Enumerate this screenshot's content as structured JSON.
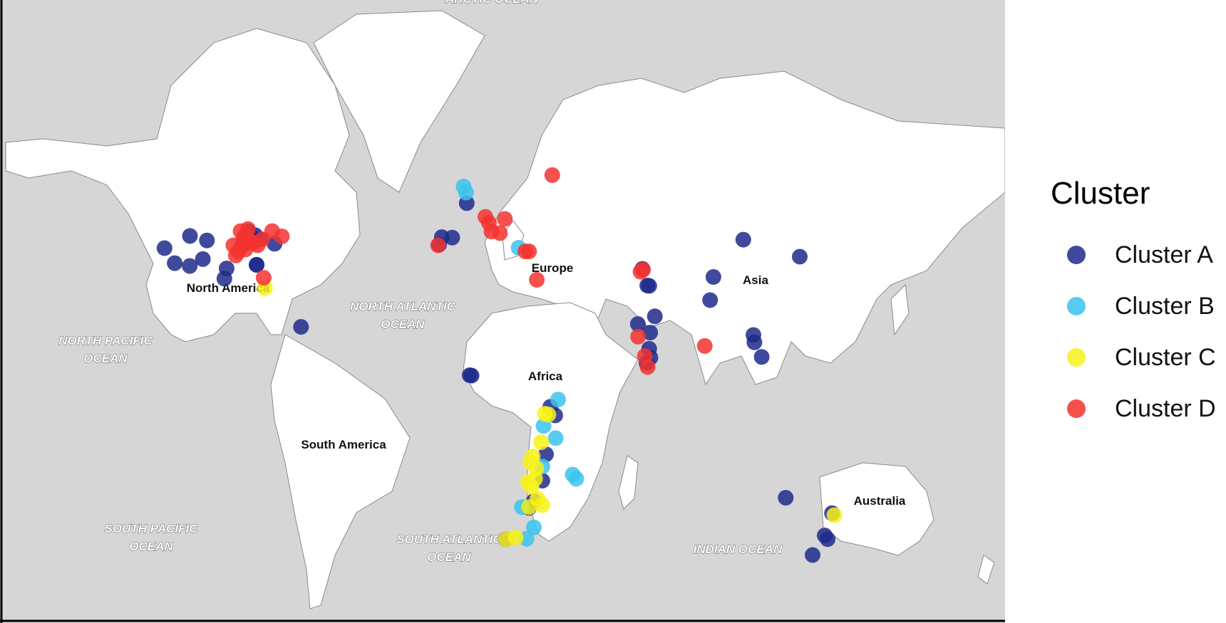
{
  "map": {
    "continent_labels": [
      "North America",
      "Europe",
      "Asia",
      "Africa",
      "South America",
      "Australia"
    ],
    "ocean_labels": {
      "north_pacific": [
        "NORTH PACIFIC",
        "OCEAN"
      ],
      "north_atlantic": [
        "NORTH ATLANTIC",
        "OCEAN"
      ],
      "south_pacific": [
        "SOUTH PACIFIC",
        "OCEAN"
      ],
      "south_atlantic": [
        "SOUTH ATLANTIC",
        "OCEAN"
      ],
      "indian": [
        "INDIAN OCEAN"
      ],
      "arctic": [
        "ARCTIC OCEAN"
      ]
    },
    "colors": {
      "ocean": "#d6d6d6",
      "land": "#ffffff",
      "border": "#8a8a8a"
    }
  },
  "legend": {
    "title": "Cluster",
    "items": [
      {
        "label": "Cluster A",
        "color": "#1f2a8c"
      },
      {
        "label": "Cluster B",
        "color": "#3cc3ef"
      },
      {
        "label": "Cluster C",
        "color": "#f7f21a"
      },
      {
        "label": "Cluster D",
        "color": "#f5322f"
      }
    ]
  },
  "points": {
    "A": [
      [
        -122.4,
        37.8
      ],
      [
        -118.2,
        34.1
      ],
      [
        -112.0,
        33.4
      ],
      [
        -111.9,
        40.8
      ],
      [
        -106.6,
        35.1
      ],
      [
        -104.9,
        39.7
      ],
      [
        -97.7,
        30.3
      ],
      [
        -96.8,
        32.8
      ],
      [
        -90.2,
        38.6
      ],
      [
        -87.6,
        41.9
      ],
      [
        -85.0,
        41.0
      ],
      [
        -83.0,
        40.0
      ],
      [
        -84.4,
        33.7
      ],
      [
        -77.0,
        38.9
      ],
      [
        -66.1,
        18.4
      ],
      [
        -9.1,
        38.7
      ],
      [
        -8.0,
        40.5
      ],
      [
        -3.7,
        40.4
      ],
      [
        2.3,
        48.9
      ],
      [
        3.5,
        6.5
      ],
      [
        4.3,
        6.4
      ],
      [
        38.8,
        -3.4
      ],
      [
        36.8,
        -1.3
      ],
      [
        35.0,
        -13.0
      ],
      [
        33.5,
        -19.5
      ],
      [
        30.0,
        -24.5
      ],
      [
        28.0,
        -26.2
      ],
      [
        18.4,
        -33.9
      ],
      [
        74.8,
        32.7
      ],
      [
        76.8,
        28.6
      ],
      [
        77.6,
        28.5
      ],
      [
        79.9,
        21.0
      ],
      [
        72.9,
        19.1
      ],
      [
        78.0,
        17.0
      ],
      [
        77.6,
        13.0
      ],
      [
        78.1,
        10.8
      ],
      [
        76.5,
        9.5
      ],
      [
        104.1,
        30.7
      ],
      [
        102.7,
        25.0
      ],
      [
        116.4,
        39.9
      ],
      [
        139.7,
        35.7
      ],
      [
        121.0,
        14.6
      ],
      [
        120.6,
        16.4
      ],
      [
        124.0,
        11.0
      ],
      [
        133.9,
        -23.7
      ],
      [
        151.2,
        -33.9
      ],
      [
        150.0,
        -33.0
      ],
      [
        153.0,
        -27.5
      ],
      [
        145.0,
        -37.8
      ],
      [
        -84.4,
        33.7
      ]
    ],
    "B": [
      [
        1.0,
        53.0
      ],
      [
        2.0,
        51.5
      ],
      [
        23.7,
        37.9
      ],
      [
        40.0,
        0.5
      ],
      [
        34.0,
        -6.0
      ],
      [
        39.0,
        -9.0
      ],
      [
        46.0,
        -18.0
      ],
      [
        47.5,
        -19.0
      ],
      [
        25.0,
        -26.0
      ],
      [
        30.0,
        -31.0
      ],
      [
        27.0,
        -33.8
      ],
      [
        33.5,
        -16.0
      ]
    ],
    "C": [
      [
        -81.0,
        28.0
      ],
      [
        34.5,
        -3.0
      ],
      [
        36.0,
        -3.2
      ],
      [
        33.0,
        -10.0
      ],
      [
        29.5,
        -13.5
      ],
      [
        28.5,
        -15.0
      ],
      [
        31.0,
        -16.5
      ],
      [
        30.5,
        -19.0
      ],
      [
        27.5,
        -19.8
      ],
      [
        29.0,
        -21.0
      ],
      [
        31.5,
        -24.0
      ],
      [
        28.0,
        -26.0
      ],
      [
        33.5,
        -25.5
      ],
      [
        22.5,
        -33.5
      ],
      [
        18.5,
        -33.9
      ],
      [
        154.0,
        -28.0
      ]
    ],
    "D": [
      [
        -94.0,
        38.5
      ],
      [
        -92.0,
        37.0
      ],
      [
        -89.0,
        41.0
      ],
      [
        -87.0,
        39.5
      ],
      [
        -86.0,
        39.0
      ],
      [
        -88.0,
        42.5
      ],
      [
        -90.0,
        40.0
      ],
      [
        -91.0,
        42.0
      ],
      [
        -89.0,
        37.5
      ],
      [
        -82.0,
        40.0
      ],
      [
        -78.0,
        42.0
      ],
      [
        -84.0,
        38.5
      ],
      [
        -93.0,
        36.0
      ],
      [
        -74.0,
        40.7
      ],
      [
        -81.5,
        30.5
      ],
      [
        -9.5,
        38.5
      ],
      [
        10.0,
        45.5
      ],
      [
        11.5,
        44.0
      ],
      [
        12.5,
        41.9
      ],
      [
        18.0,
        45.0
      ],
      [
        16.0,
        41.5
      ],
      [
        26.5,
        37.0
      ],
      [
        28.0,
        37.0
      ],
      [
        37.6,
        55.8
      ],
      [
        31.2,
        30.0
      ],
      [
        74.0,
        32.0
      ],
      [
        75.0,
        32.5
      ],
      [
        73.0,
        16.0
      ],
      [
        75.8,
        11.2
      ],
      [
        76.9,
        8.5
      ],
      [
        100.5,
        13.7
      ]
    ]
  }
}
